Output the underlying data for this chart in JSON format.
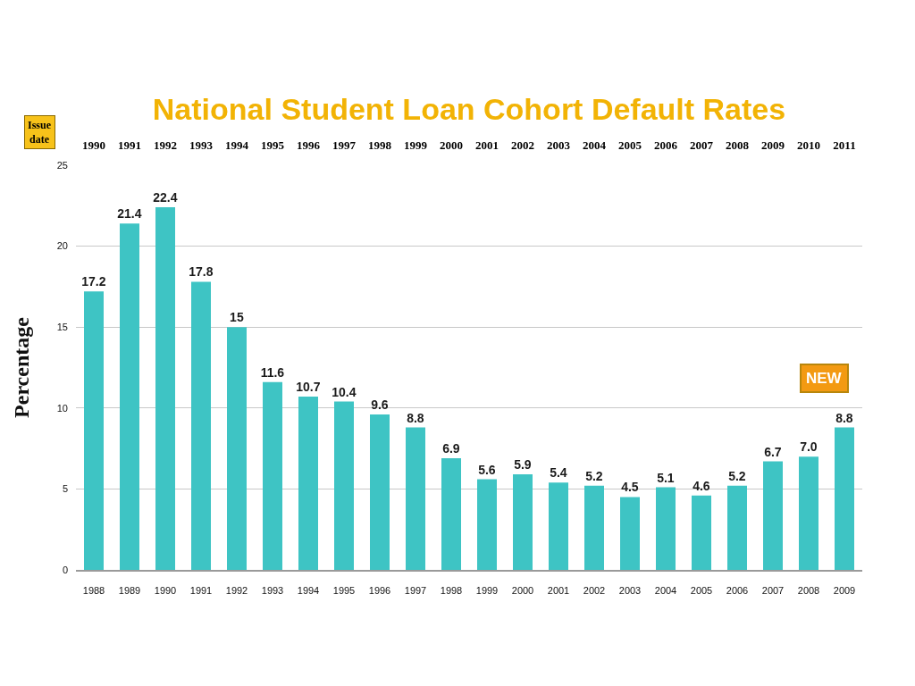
{
  "chart_data": {
    "type": "bar",
    "title": "National Student Loan Cohort Default Rates",
    "ylabel": "Percentage",
    "x2label": "Issue date",
    "categories": [
      "1988",
      "1989",
      "1990",
      "1991",
      "1992",
      "1993",
      "1994",
      "1995",
      "1996",
      "1997",
      "1998",
      "1999",
      "2000",
      "2001",
      "2002",
      "2003",
      "2004",
      "2005",
      "2006",
      "2007",
      "2008",
      "2009"
    ],
    "x2lim": [
      1989.5,
      2011.5
    ],
    "x2ticks": [
      1990,
      1991,
      1992,
      1993,
      1994,
      1995,
      1996,
      1997,
      1998,
      1999,
      2000,
      2001,
      2002,
      2003,
      2004,
      2005,
      2006,
      2007,
      2008,
      2009,
      2010,
      2011
    ],
    "values": [
      17.2,
      21.4,
      22.4,
      17.8,
      15,
      11.6,
      10.7,
      10.4,
      9.6,
      8.8,
      6.9,
      5.6,
      5.9,
      5.4,
      5.2,
      4.5,
      5.1,
      4.6,
      5.2,
      6.7,
      7.0,
      8.8
    ],
    "value_labels": [
      "17.2",
      "21.4",
      "22.4",
      "17.8",
      "15",
      "11.6",
      "10.7",
      "10.4",
      "9.6",
      "8.8",
      "6.9",
      "5.6",
      "5.9",
      "5.4",
      "5.2",
      "4.5",
      "5.1",
      "4.6",
      "5.2",
      "6.7",
      "7.0",
      "8.8"
    ],
    "color": "#3ec4c4",
    "ylim": [
      0,
      25
    ],
    "yticks": [
      0,
      5,
      10,
      15,
      20,
      25
    ],
    "grid": "y",
    "legend": false,
    "annotations": [
      "NEW"
    ]
  }
}
